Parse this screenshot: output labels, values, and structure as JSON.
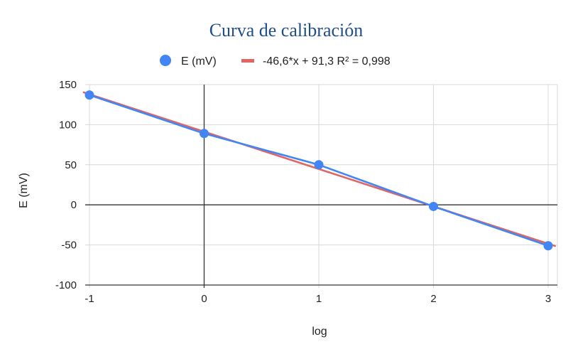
{
  "chart_data": {
    "type": "line",
    "title": "Curva de calibración",
    "xlabel": "log",
    "ylabel": "E (mV)",
    "xlim": [
      -1,
      3
    ],
    "ylim": [
      -100,
      150
    ],
    "x_ticks": [
      "-1",
      "0",
      "1",
      "2",
      "3"
    ],
    "y_ticks": [
      "150",
      "100",
      "50",
      "0",
      "-50",
      "-100"
    ],
    "grid": true,
    "legend_position": "top",
    "series": [
      {
        "name": "E (mV)",
        "color": "#4285f4",
        "x": [
          -1,
          0,
          1,
          2,
          3
        ],
        "y": [
          137,
          89,
          50,
          -2,
          -51
        ]
      },
      {
        "name": "-46,6*x + 91,3 R² = 0,998",
        "color": "#e06666",
        "type": "trendline",
        "slope": -46.6,
        "intercept": 91.3,
        "x_range": [
          -1,
          3
        ]
      }
    ]
  }
}
